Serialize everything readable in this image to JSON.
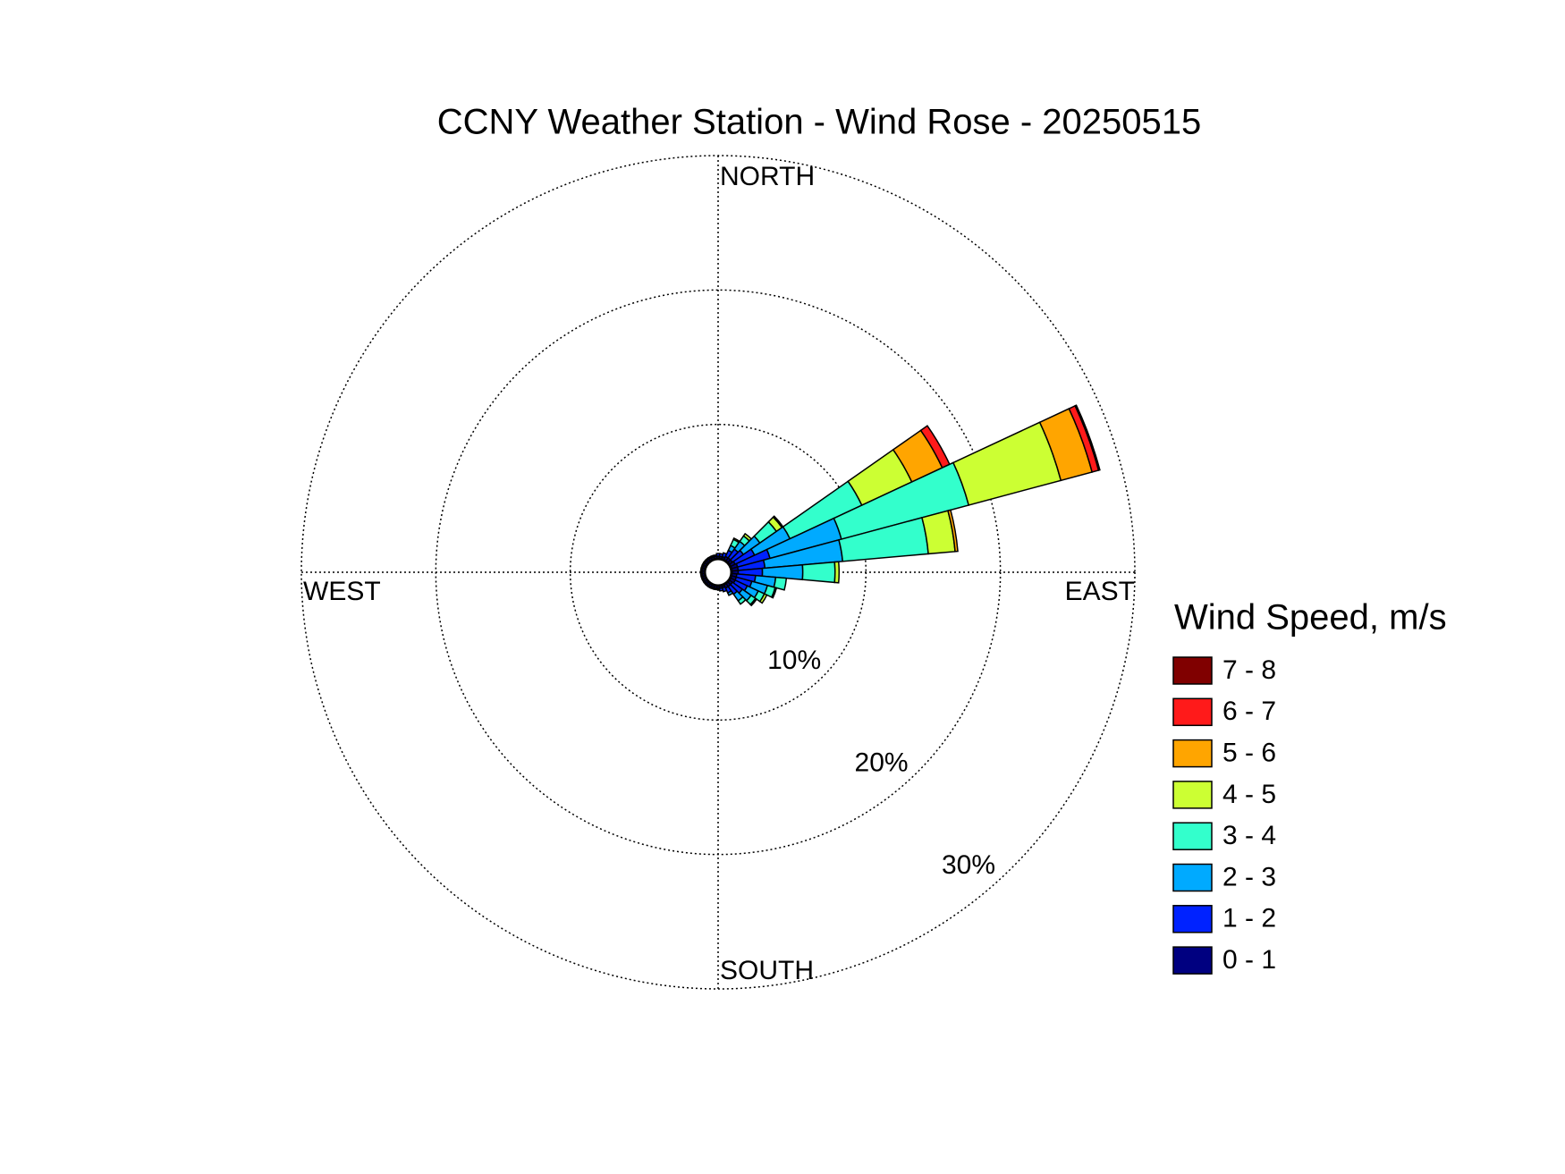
{
  "chart_data": {
    "type": "windrose",
    "title": "CCNY Weather Station - Wind Rose - 20250515",
    "compass_labels": {
      "north": "NORTH",
      "south": "SOUTH",
      "east": "EAST",
      "west": "WEST"
    },
    "directions": [
      0,
      10,
      20,
      30,
      40,
      50,
      60,
      70,
      80,
      90,
      100,
      110,
      120,
      130,
      140,
      150,
      160,
      170,
      180,
      190,
      200,
      210,
      220,
      230,
      240,
      250,
      260,
      270,
      280,
      290,
      300,
      310,
      320,
      330,
      340,
      350
    ],
    "rlim": [
      0,
      30
    ],
    "rticks": [
      {
        "value": 10,
        "label": "10%"
      },
      {
        "value": 20,
        "label": "20%"
      },
      {
        "value": 30,
        "label": "30%"
      }
    ],
    "legend_title": "Wind Speed, m/s",
    "series": [
      {
        "name": "0 - 1",
        "color": "#000080",
        "values": [
          0.2,
          0.2,
          0.2,
          0.3,
          0.3,
          0.3,
          0.4,
          0.5,
          0.5,
          0.5,
          0.4,
          0.4,
          0.4,
          0.3,
          0.3,
          0.3,
          0.2,
          0.2,
          0.2,
          0.2,
          0.2,
          0.2,
          0.2,
          0.2,
          0.2,
          0.2,
          0.2,
          0.2,
          0.2,
          0.2,
          0.2,
          0.2,
          0.2,
          0.2,
          0.2,
          0.2
        ]
      },
      {
        "name": "1 - 2",
        "color": "#0022ff",
        "values": [
          0.2,
          0.2,
          0.3,
          0.5,
          0.8,
          1.0,
          1.6,
          2.5,
          2.0,
          1.8,
          1.4,
          1.2,
          1.0,
          0.9,
          0.7,
          0.4,
          0.3,
          0.2,
          0.1,
          0.1,
          0.1,
          0.1,
          0.1,
          0.1,
          0.1,
          0.1,
          0.1,
          0.1,
          0.1,
          0.1,
          0.1,
          0.1,
          0.1,
          0.1,
          0.1,
          0.1
        ]
      },
      {
        "name": "2 - 3",
        "color": "#00aaff",
        "values": [
          0,
          0,
          0,
          0.4,
          0.7,
          1.5,
          2.9,
          5.5,
          5.8,
          3.0,
          1.5,
          1.2,
          0.9,
          0.8,
          0.6,
          0.2,
          0,
          0,
          0,
          0,
          0,
          0,
          0,
          0,
          0,
          0,
          0,
          0,
          0,
          0,
          0,
          0,
          0,
          0,
          0,
          0
        ]
      },
      {
        "name": "3 - 4",
        "color": "#33ffcc",
        "values": [
          0,
          0,
          0,
          0.5,
          0.5,
          1.5,
          5.9,
          9.8,
          6.4,
          2.4,
          0.8,
          0.6,
          0.5,
          0.4,
          0.3,
          0,
          0,
          0,
          0,
          0,
          0,
          0,
          0,
          0,
          0,
          0,
          0,
          0,
          0,
          0,
          0,
          0,
          0,
          0,
          0,
          0
        ]
      },
      {
        "name": "4 - 5",
        "color": "#ccff33",
        "values": [
          0,
          0,
          0,
          0.1,
          0.2,
          0.5,
          4.1,
          7.1,
          2.0,
          0.3,
          0,
          0.1,
          0.2,
          0.1,
          0,
          0,
          0,
          0,
          0,
          0,
          0,
          0,
          0,
          0,
          0,
          0,
          0,
          0,
          0,
          0,
          0,
          0,
          0,
          0,
          0,
          0
        ]
      },
      {
        "name": "5 - 6",
        "color": "#ffa500",
        "values": [
          0,
          0,
          0,
          0,
          0,
          0.1,
          2.5,
          2.4,
          0.2,
          0,
          0,
          0,
          0,
          0,
          0,
          0,
          0,
          0,
          0,
          0,
          0,
          0,
          0,
          0,
          0,
          0,
          0,
          0,
          0,
          0,
          0,
          0,
          0,
          0,
          0,
          0
        ]
      },
      {
        "name": "6 - 7",
        "color": "#ff1a1a",
        "values": [
          0,
          0,
          0,
          0,
          0,
          0,
          0.6,
          0.5,
          0,
          0,
          0,
          0,
          0,
          0,
          0,
          0,
          0,
          0,
          0,
          0,
          0,
          0,
          0,
          0,
          0,
          0,
          0,
          0,
          0,
          0,
          0,
          0,
          0,
          0,
          0,
          0
        ]
      },
      {
        "name": "7 - 8",
        "color": "#800000",
        "values": [
          0,
          0,
          0,
          0,
          0,
          0,
          0,
          0.1,
          0,
          0,
          0,
          0,
          0,
          0,
          0,
          0,
          0,
          0,
          0,
          0,
          0,
          0,
          0,
          0,
          0,
          0,
          0,
          0,
          0,
          0,
          0,
          0,
          0,
          0,
          0,
          0
        ]
      }
    ]
  }
}
